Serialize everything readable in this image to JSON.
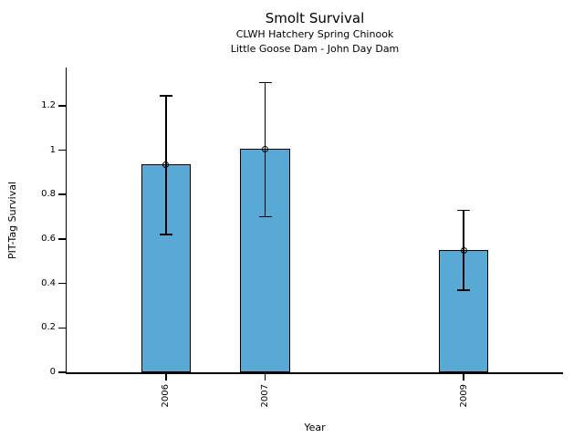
{
  "figure": {
    "background": "#ffffff"
  },
  "chart_data": {
    "type": "bar",
    "title": "Smolt Survival",
    "subtitle_line1": "CLWH Hatchery Spring Chinook",
    "subtitle_line2": "Little Goose Dam - John Day Dam",
    "xlabel": "Year",
    "ylabel": "PIT-Tag Survival",
    "categories": [
      "2006",
      "2007",
      "2009"
    ],
    "x": [
      2006,
      2007,
      2009
    ],
    "values": [
      0.935,
      1.005,
      0.55
    ],
    "error_low": [
      0.62,
      0.7,
      0.37
    ],
    "error_high": [
      1.245,
      1.305,
      0.73
    ],
    "marker": "open-circle",
    "bar_color": "#58a9d5",
    "bar_edge_color": "#000000",
    "bar_width_x": 0.5,
    "xlim": [
      2005,
      2010
    ],
    "ylim": [
      0,
      1.372
    ],
    "yticks": [
      0,
      0.2,
      0.4,
      0.6,
      0.8,
      1,
      1.2
    ],
    "ytick_labels": [
      "0",
      "0.2",
      "0.4",
      "0.6",
      "0.8",
      "1",
      "1.2"
    ],
    "grid": false,
    "legend": null
  }
}
